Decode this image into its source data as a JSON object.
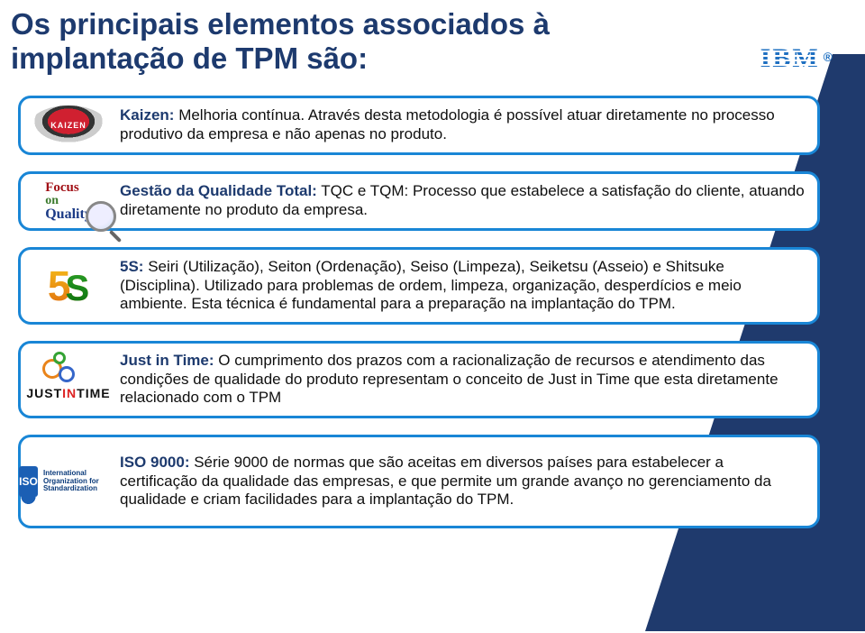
{
  "title": "Os principais elementos associados à implantação de TPM são:",
  "logo": {
    "text": "IBM",
    "reg": "®",
    "color": "#1f70c1"
  },
  "accent_color": "#1f3a6d",
  "card_border_color": "#1986d6",
  "lead_color": "#1d3a6e",
  "cards": [
    {
      "icon": "kaizen",
      "lead": "Kaizen:",
      "body": " Melhoria contínua. Através desta metodologia é possível atuar diretamente no processo produtivo da empresa e não apenas no produto."
    },
    {
      "icon": "focus",
      "lead": "Gestão da Qualidade Total:",
      "body": " TQC e TQM: Processo que estabelece a satisfação do cliente, atuando diretamente no produto da empresa."
    },
    {
      "icon": "5s",
      "lead": "5S:",
      "body": " Seiri (Utilização), Seiton (Ordenação), Seiso (Limpeza), Seiketsu (Asseio) e Shitsuke (Disciplina). Utilizado para problemas de ordem, limpeza, organização, desperdícios e meio ambiente. Esta técnica é fundamental para a preparação na implantação do TPM."
    },
    {
      "icon": "jit",
      "lead": "Just in Time:",
      "body": " O cumprimento dos prazos com a racionalização de recursos e atendimento das condições de qualidade do produto representam o conceito de Just in Time que esta diretamente relacionado com o TPM"
    },
    {
      "icon": "iso",
      "lead": "ISO 9000:",
      "body": " Série 9000 de normas que são aceitas em diversos países para estabelecer a certificação da qualidade das empresas, e que permite um grande avanço no gerenciamento da qualidade e criam facilidades para a implantação do TPM."
    }
  ],
  "icon_labels": {
    "kaizen": "KAIZEN",
    "focus_line1": "Focus",
    "focus_line2": "on",
    "focus_line3": "Quality",
    "five": "5",
    "s": "S",
    "jit_just": "JUST",
    "jit_in": "IN",
    "jit_time": "TIME",
    "iso_badge": "ISO",
    "iso_txt": "International Organization for Standardization"
  }
}
